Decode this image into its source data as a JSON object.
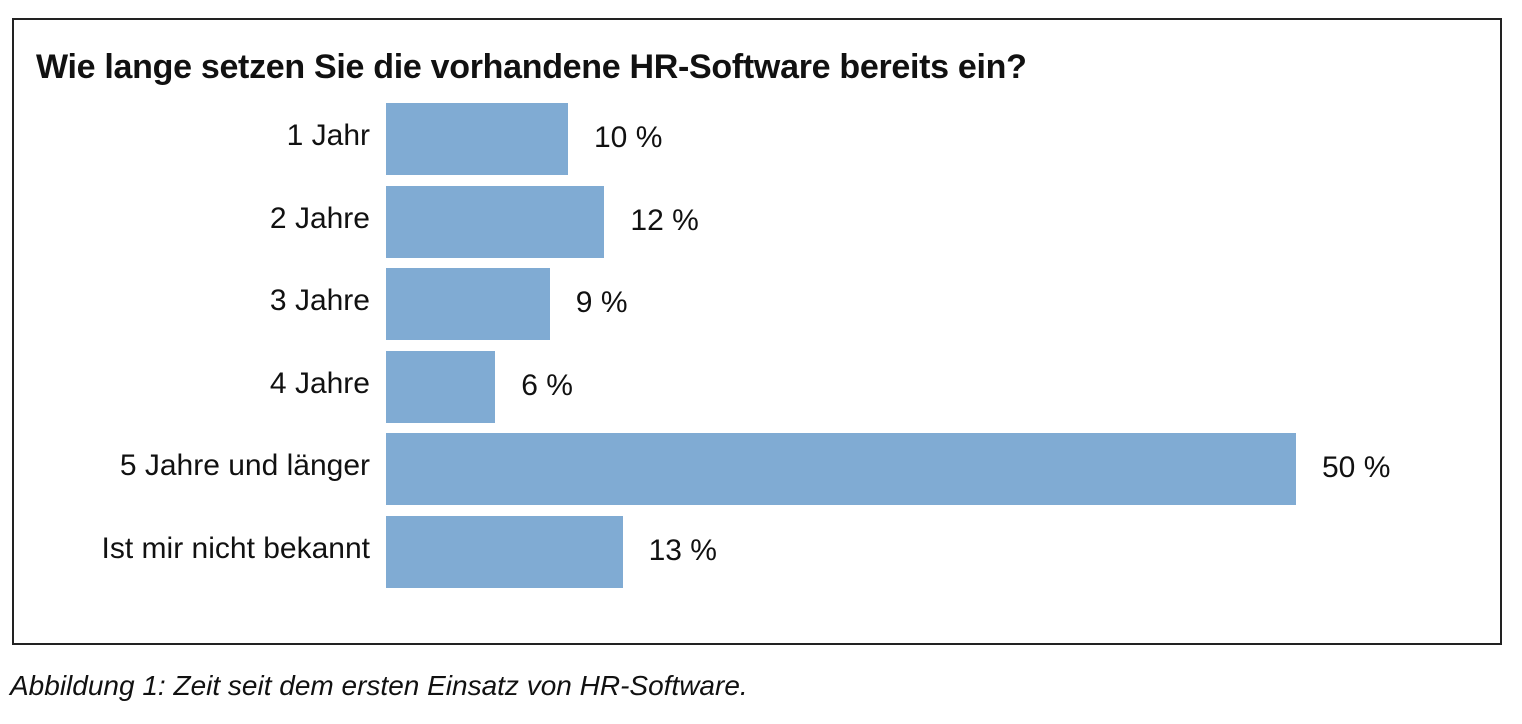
{
  "chart_data": {
    "type": "bar",
    "orientation": "horizontal",
    "title": "Wie lange setzen Sie die vorhandene HR-Software bereits ein?",
    "categories": [
      "1 Jahr",
      "2 Jahre",
      "3 Jahre",
      "4 Jahre",
      "5 Jahre und länger",
      "Ist mir nicht bekannt"
    ],
    "values": [
      10,
      12,
      9,
      6,
      50,
      13
    ],
    "value_labels": [
      "10 %",
      "12 %",
      "9 %",
      "6 %",
      "50 %",
      "13 %"
    ],
    "unit": "%",
    "xlim": [
      0,
      50
    ],
    "grid": false,
    "bar_color": "#80abd3"
  },
  "caption": "Abbildung 1: Zeit seit dem ersten Einsatz von HR-Software."
}
